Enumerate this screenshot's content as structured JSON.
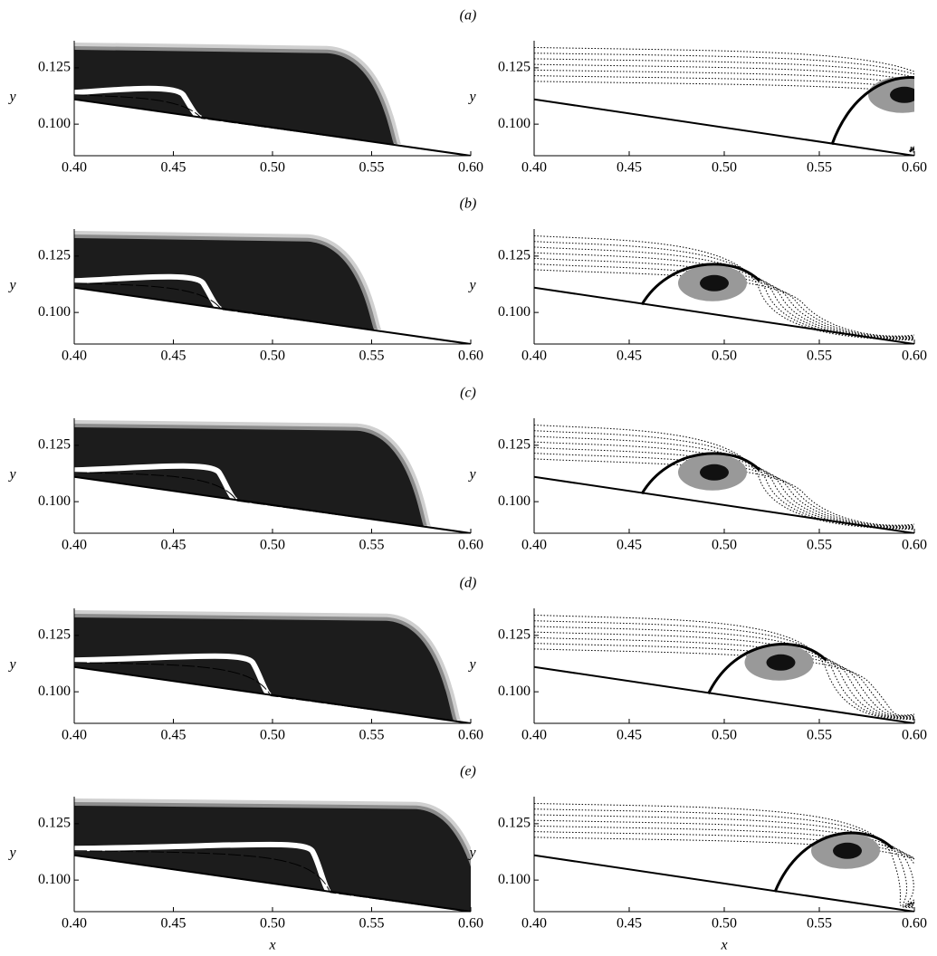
{
  "panel_labels": [
    "(a)",
    "(b)",
    "(c)",
    "(d)",
    "(e)"
  ],
  "chart_data": [
    {
      "type": "contour",
      "field": "filled",
      "ylabel": "y",
      "xlim": [
        0.4,
        0.6
      ],
      "ylim": [
        0.086,
        0.137
      ],
      "xticks": [
        {
          "value": 0.4,
          "label": "0.40"
        },
        {
          "value": 0.45,
          "label": "0.45"
        },
        {
          "value": 0.5,
          "label": "0.50"
        },
        {
          "value": 0.55,
          "label": "0.55"
        },
        {
          "value": 0.6,
          "label": "0.60"
        }
      ],
      "yticks": [
        {
          "value": 0.1,
          "label": "0.100"
        },
        0.125
      ]
    },
    {
      "type": "contour",
      "field": "streamlines",
      "ylabel": "y",
      "xlim": [
        0.4,
        0.6
      ],
      "ylim": [
        0.086,
        0.137
      ],
      "xticks": [
        {
          "value": 0.4,
          "label": "0.40"
        },
        {
          "value": 0.45,
          "label": "0.45"
        },
        {
          "value": 0.5,
          "label": "0.50"
        },
        {
          "value": 0.55,
          "label": "0.55"
        },
        {
          "value": 0.6,
          "label": "0.60"
        }
      ],
      "yticks": [
        {
          "value": 0.1,
          "label": "0.100"
        },
        0.125
      ]
    },
    {
      "type": "contour",
      "field": "filled",
      "ylabel": "y",
      "xlim": [
        0.4,
        0.6
      ],
      "ylim": [
        0.086,
        0.137
      ],
      "xticks": [
        {
          "value": 0.4,
          "label": "0.40"
        },
        {
          "value": 0.45,
          "label": "0.45"
        },
        {
          "value": 0.5,
          "label": "0.50"
        },
        {
          "value": 0.55,
          "label": "0.55"
        },
        {
          "value": 0.6,
          "label": "0.60"
        }
      ],
      "yticks": [
        {
          "value": 0.1,
          "label": "0.100"
        },
        0.125
      ]
    },
    {
      "type": "contour",
      "field": "streamlines",
      "ylabel": "y",
      "xlim": [
        0.4,
        0.6
      ],
      "ylim": [
        0.086,
        0.137
      ],
      "xticks": [
        {
          "value": 0.4,
          "label": "0.40"
        },
        {
          "value": 0.45,
          "label": "0.45"
        },
        {
          "value": 0.5,
          "label": "0.50"
        },
        {
          "value": 0.55,
          "label": "0.55"
        },
        {
          "value": 0.6,
          "label": "0.60"
        }
      ],
      "yticks": [
        {
          "value": 0.1,
          "label": "0.100"
        },
        0.125
      ]
    },
    {
      "type": "contour",
      "field": "filled",
      "ylabel": "y",
      "xlim": [
        0.4,
        0.6
      ],
      "ylim": [
        0.086,
        0.137
      ],
      "xticks": [
        {
          "value": 0.4,
          "label": "0.40"
        },
        {
          "value": 0.45,
          "label": "0.45"
        },
        {
          "value": 0.5,
          "label": "0.50"
        },
        {
          "value": 0.55,
          "label": "0.55"
        },
        {
          "value": 0.6,
          "label": "0.60"
        }
      ],
      "yticks": [
        {
          "value": 0.1,
          "label": "0.100"
        },
        0.125
      ]
    },
    {
      "type": "contour",
      "field": "streamlines",
      "ylabel": "y",
      "xlim": [
        0.4,
        0.6
      ],
      "ylim": [
        0.086,
        0.137
      ],
      "xticks": [
        {
          "value": 0.4,
          "label": "0.40"
        },
        {
          "value": 0.45,
          "label": "0.45"
        },
        {
          "value": 0.5,
          "label": "0.50"
        },
        {
          "value": 0.55,
          "label": "0.55"
        },
        {
          "value": 0.6,
          "label": "0.60"
        }
      ],
      "yticks": [
        {
          "value": 0.1,
          "label": "0.100"
        },
        0.125
      ]
    },
    {
      "type": "contour",
      "field": "filled",
      "ylabel": "y",
      "xlim": [
        0.4,
        0.6
      ],
      "ylim": [
        0.086,
        0.137
      ],
      "xticks": [
        {
          "value": 0.4,
          "label": "0.40"
        },
        {
          "value": 0.45,
          "label": "0.45"
        },
        {
          "value": 0.5,
          "label": "0.50"
        },
        {
          "value": 0.55,
          "label": "0.55"
        },
        {
          "value": 0.6,
          "label": "0.60"
        }
      ],
      "yticks": [
        {
          "value": 0.1,
          "label": "0.100"
        },
        0.125
      ]
    },
    {
      "type": "contour",
      "field": "streamlines",
      "ylabel": "y",
      "xlim": [
        0.4,
        0.6
      ],
      "ylim": [
        0.086,
        0.137
      ],
      "xticks": [
        {
          "value": 0.4,
          "label": "0.40"
        },
        {
          "value": 0.45,
          "label": "0.45"
        },
        {
          "value": 0.5,
          "label": "0.50"
        },
        {
          "value": 0.55,
          "label": "0.55"
        },
        {
          "value": 0.6,
          "label": "0.60"
        }
      ],
      "yticks": [
        {
          "value": 0.1,
          "label": "0.100"
        },
        0.125
      ]
    },
    {
      "type": "contour",
      "field": "filled",
      "ylabel": "y",
      "xlabel": "x",
      "xlim": [
        0.4,
        0.6
      ],
      "ylim": [
        0.086,
        0.137
      ],
      "xticks": [
        {
          "value": 0.4,
          "label": "0.40"
        },
        {
          "value": 0.45,
          "label": "0.45"
        },
        {
          "value": 0.5,
          "label": "0.50"
        },
        {
          "value": 0.55,
          "label": "0.55"
        },
        {
          "value": 0.6,
          "label": "0.60"
        }
      ],
      "yticks": [
        {
          "value": 0.1,
          "label": "0.100"
        },
        0.125
      ]
    },
    {
      "type": "contour",
      "field": "streamlines",
      "ylabel": "y",
      "xlabel": "x",
      "xlim": [
        0.4,
        0.6
      ],
      "ylim": [
        0.086,
        0.137
      ],
      "xticks": [
        {
          "value": 0.4,
          "label": "0.40"
        },
        {
          "value": 0.45,
          "label": "0.45"
        },
        {
          "value": 0.5,
          "label": "0.50"
        },
        {
          "value": 0.55,
          "label": "0.55"
        },
        {
          "value": 0.6,
          "label": "0.60"
        }
      ],
      "yticks": [
        {
          "value": 0.1,
          "label": "0.100"
        },
        0.125
      ]
    }
  ]
}
